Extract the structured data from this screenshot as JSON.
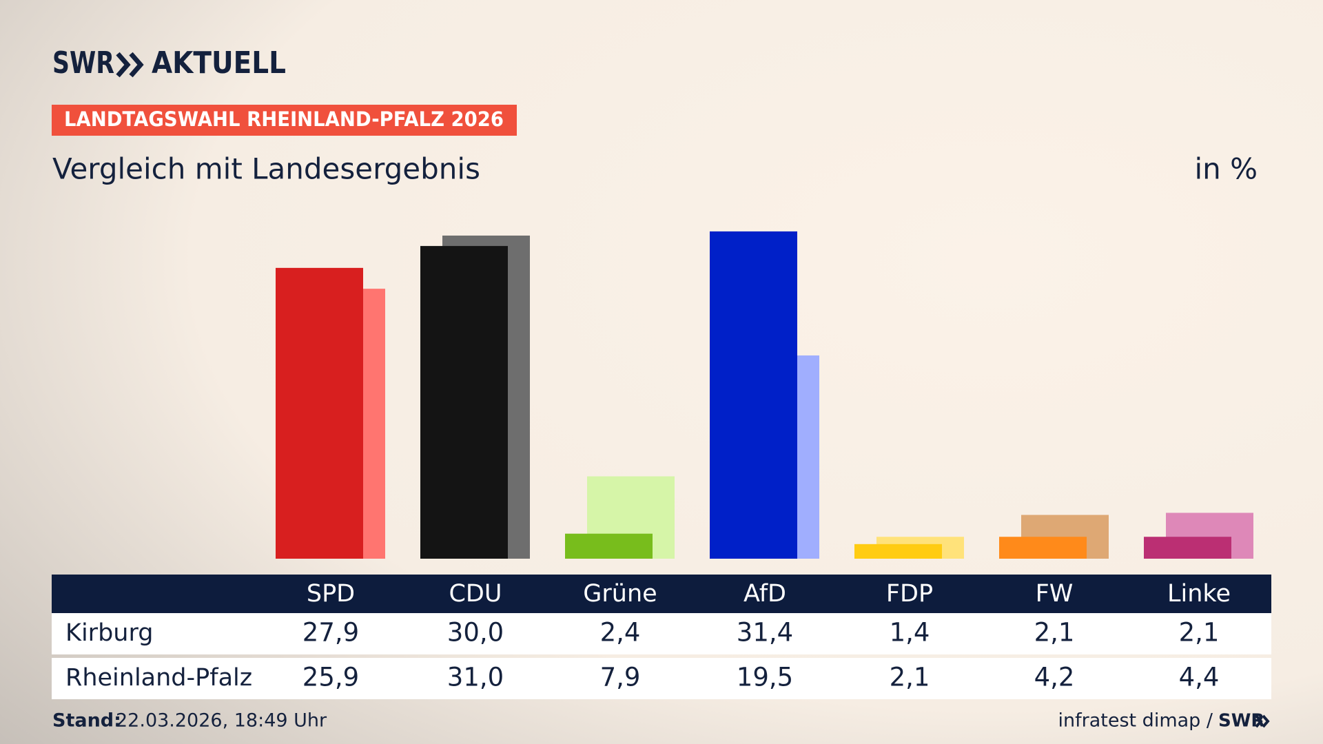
{
  "header": {
    "logo": "SWR",
    "logo_text": "AKTUELL"
  },
  "chart_data": {
    "type": "bar",
    "kicker": "LANDTAGSWAHL RHEINLAND-PFALZ 2026",
    "title": "Vergleich mit Landesergebnis",
    "unit": "in %",
    "categories": [
      "SPD",
      "CDU",
      "Grüne",
      "AfD",
      "FDP",
      "FW",
      "Linke"
    ],
    "series": [
      {
        "name": "Kirburg",
        "colors": [
          "#d81f1f",
          "#141414",
          "#78bd1c",
          "#0020c8",
          "#ffcc12",
          "#ff8a1a",
          "#bb2f73"
        ],
        "values": [
          27.9,
          30.0,
          2.4,
          31.4,
          1.4,
          2.1,
          2.1
        ],
        "value_labels": [
          "27,9",
          "30,0",
          "2,4",
          "31,4",
          "1,4",
          "2,1",
          "2,1"
        ]
      },
      {
        "name": "Rheinland-Pfalz",
        "colors": [
          "#ff7570",
          "#6e6e6e",
          "#d6f5a8",
          "#a0aefe",
          "#ffe27a",
          "#dea874",
          "#de88b8"
        ],
        "values": [
          25.9,
          31.0,
          7.9,
          19.5,
          2.1,
          4.2,
          4.4
        ],
        "value_labels": [
          "25,9",
          "31,0",
          "7,9",
          "19,5",
          "2,1",
          "4,2",
          "4,4"
        ]
      }
    ]
  },
  "footer": {
    "stand_label": "Stand:",
    "stand": "22.03.2026, 18:49 Uhr",
    "source": "infratest dimap /",
    "logo": "SWR"
  }
}
